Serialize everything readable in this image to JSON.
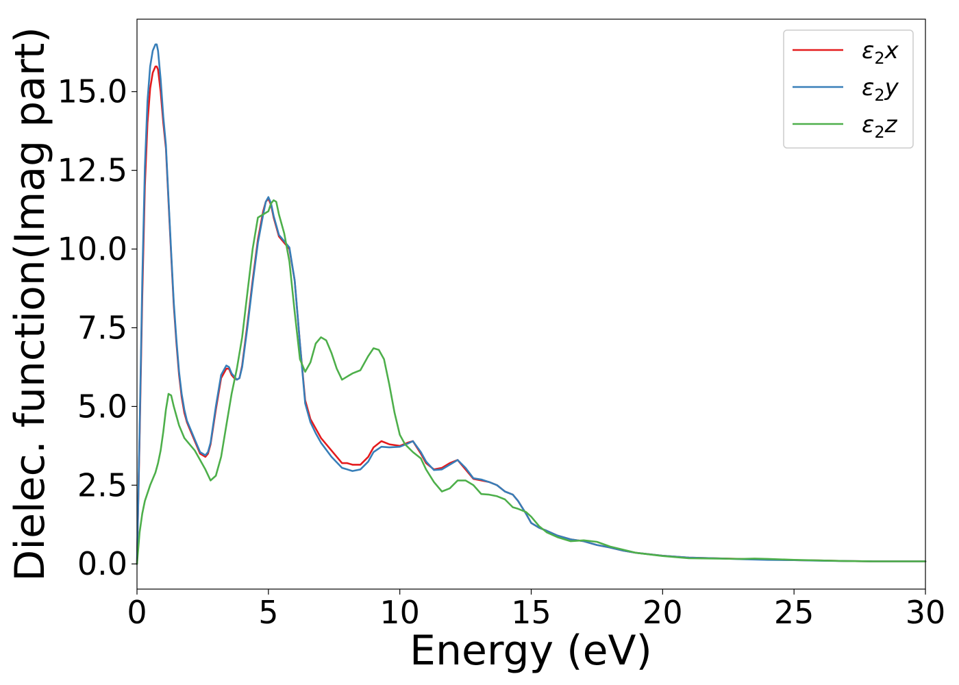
{
  "chart_data": {
    "type": "line",
    "title": "",
    "xlabel": "Energy (eV)",
    "ylabel": "Dielec. function(Imag part)",
    "xlim": [
      0,
      30
    ],
    "ylim": [
      -0.8,
      17.3
    ],
    "xticks": [
      0,
      5,
      10,
      15,
      20,
      25,
      30
    ],
    "xtick_labels": [
      "0",
      "5",
      "10",
      "15",
      "20",
      "25",
      "30"
    ],
    "yticks": [
      0,
      2.5,
      5,
      7.5,
      10,
      12.5,
      15
    ],
    "ytick_labels": [
      "0.0",
      "2.5",
      "5.0",
      "7.5",
      "10.0",
      "12.5",
      "15.0"
    ],
    "grid": false,
    "legend_position": "top-right",
    "series": [
      {
        "name": "ε2x",
        "legend_base": "ε",
        "legend_sub": "2",
        "legend_suffix": "x",
        "color": "#e41a1c",
        "x": [
          0,
          0.1,
          0.2,
          0.3,
          0.4,
          0.5,
          0.6,
          0.7,
          0.75,
          0.8,
          0.9,
          1.0,
          1.1,
          1.2,
          1.3,
          1.4,
          1.5,
          1.6,
          1.7,
          1.8,
          1.9,
          2.0,
          2.2,
          2.4,
          2.6,
          2.7,
          2.8,
          3.0,
          3.2,
          3.4,
          3.5,
          3.6,
          3.7,
          3.8,
          3.9,
          4.0,
          4.2,
          4.4,
          4.6,
          4.8,
          4.9,
          5.0,
          5.1,
          5.2,
          5.4,
          5.6,
          5.8,
          6.0,
          6.2,
          6.4,
          6.6,
          6.8,
          7.0,
          7.4,
          7.8,
          8.0,
          8.2,
          8.5,
          8.8,
          9.0,
          9.3,
          9.6,
          10.0,
          10.3,
          10.5,
          10.8,
          11.0,
          11.3,
          11.6,
          11.9,
          12.2,
          12.5,
          12.8,
          13.1,
          13.4,
          13.7,
          14.0,
          14.3,
          14.5,
          14.8,
          15.0,
          15.3,
          15.6,
          16.0,
          16.5,
          17.0,
          17.5,
          18.0,
          18.5,
          19.0,
          20.0,
          21.0,
          22.0,
          23.0,
          24.0,
          25.0,
          26.0,
          27.0,
          28.0,
          29.0,
          30.0
        ],
        "values": [
          0,
          4.0,
          8.5,
          12.0,
          14.0,
          15.1,
          15.6,
          15.8,
          15.8,
          15.7,
          15.0,
          14.0,
          13.2,
          11.5,
          9.8,
          8.2,
          7.0,
          6.0,
          5.3,
          4.8,
          4.5,
          4.3,
          3.9,
          3.5,
          3.4,
          3.5,
          3.8,
          4.9,
          5.9,
          6.2,
          6.2,
          6.0,
          5.9,
          5.85,
          5.9,
          6.3,
          7.6,
          9.0,
          10.3,
          11.2,
          11.5,
          11.6,
          11.4,
          11.0,
          10.4,
          10.2,
          10.0,
          9.0,
          7.0,
          5.2,
          4.6,
          4.3,
          4.0,
          3.6,
          3.2,
          3.2,
          3.15,
          3.15,
          3.4,
          3.7,
          3.9,
          3.8,
          3.75,
          3.85,
          3.9,
          3.5,
          3.2,
          3.0,
          3.05,
          3.2,
          3.3,
          3.0,
          2.7,
          2.65,
          2.6,
          2.5,
          2.3,
          2.2,
          2.0,
          1.6,
          1.3,
          1.15,
          1.05,
          0.9,
          0.78,
          0.72,
          0.6,
          0.52,
          0.42,
          0.35,
          0.26,
          0.2,
          0.18,
          0.16,
          0.14,
          0.12,
          0.11,
          0.09,
          0.08,
          0.08,
          0.08
        ]
      },
      {
        "name": "ε2y",
        "legend_base": "ε",
        "legend_sub": "2",
        "legend_suffix": "y",
        "color": "#377eb8",
        "x": [
          0,
          0.1,
          0.2,
          0.3,
          0.4,
          0.5,
          0.6,
          0.7,
          0.75,
          0.8,
          0.9,
          1.0,
          1.1,
          1.2,
          1.3,
          1.4,
          1.5,
          1.6,
          1.7,
          1.8,
          1.9,
          2.0,
          2.2,
          2.4,
          2.6,
          2.7,
          2.8,
          3.0,
          3.2,
          3.4,
          3.5,
          3.6,
          3.7,
          3.8,
          3.9,
          4.0,
          4.2,
          4.4,
          4.6,
          4.8,
          4.9,
          5.0,
          5.1,
          5.2,
          5.4,
          5.6,
          5.8,
          6.0,
          6.2,
          6.4,
          6.6,
          6.8,
          7.0,
          7.4,
          7.8,
          8.0,
          8.2,
          8.5,
          8.8,
          9.0,
          9.3,
          9.6,
          10.0,
          10.3,
          10.5,
          10.8,
          11.0,
          11.3,
          11.6,
          11.9,
          12.2,
          12.5,
          12.8,
          13.1,
          13.4,
          13.7,
          14.0,
          14.3,
          14.5,
          14.8,
          15.0,
          15.3,
          15.6,
          16.0,
          16.5,
          17.0,
          17.5,
          18.0,
          18.5,
          19.0,
          20.0,
          21.0,
          22.0,
          23.0,
          24.0,
          25.0,
          26.0,
          27.0,
          28.0,
          29.0,
          30.0
        ],
        "values": [
          0,
          4.2,
          9.0,
          12.6,
          14.7,
          15.8,
          16.3,
          16.5,
          16.5,
          16.3,
          15.4,
          14.2,
          13.3,
          11.6,
          9.9,
          8.3,
          7.1,
          6.1,
          5.4,
          4.9,
          4.55,
          4.35,
          3.95,
          3.55,
          3.45,
          3.55,
          3.85,
          5.0,
          6.0,
          6.3,
          6.25,
          6.05,
          5.95,
          5.85,
          5.9,
          6.25,
          7.5,
          8.9,
          10.2,
          11.1,
          11.5,
          11.65,
          11.45,
          11.05,
          10.45,
          10.25,
          10.05,
          9.0,
          7.0,
          5.1,
          4.5,
          4.15,
          3.85,
          3.4,
          3.05,
          3.0,
          2.95,
          3.0,
          3.25,
          3.55,
          3.72,
          3.7,
          3.72,
          3.82,
          3.9,
          3.55,
          3.25,
          2.98,
          3.0,
          3.15,
          3.3,
          3.05,
          2.72,
          2.68,
          2.6,
          2.5,
          2.3,
          2.2,
          2.0,
          1.6,
          1.3,
          1.15,
          1.05,
          0.9,
          0.78,
          0.72,
          0.6,
          0.52,
          0.42,
          0.35,
          0.26,
          0.2,
          0.18,
          0.15,
          0.13,
          0.12,
          0.1,
          0.09,
          0.08,
          0.08,
          0.08
        ]
      },
      {
        "name": "ε2z",
        "legend_base": "ε",
        "legend_sub": "2",
        "legend_suffix": "z",
        "color": "#4daf4a",
        "x": [
          0,
          0.1,
          0.2,
          0.3,
          0.5,
          0.7,
          0.8,
          0.9,
          1.0,
          1.1,
          1.2,
          1.3,
          1.4,
          1.6,
          1.8,
          2.0,
          2.2,
          2.4,
          2.6,
          2.8,
          3.0,
          3.2,
          3.4,
          3.6,
          3.8,
          4.0,
          4.2,
          4.4,
          4.6,
          4.8,
          5.0,
          5.1,
          5.2,
          5.3,
          5.4,
          5.6,
          5.8,
          6.0,
          6.2,
          6.4,
          6.6,
          6.8,
          7.0,
          7.2,
          7.4,
          7.6,
          7.8,
          8.0,
          8.2,
          8.5,
          8.8,
          9.0,
          9.2,
          9.4,
          9.6,
          9.8,
          10.0,
          10.2,
          10.5,
          10.8,
          11.0,
          11.3,
          11.6,
          11.9,
          12.2,
          12.5,
          12.8,
          13.1,
          13.4,
          13.7,
          14.0,
          14.3,
          14.5,
          14.8,
          15.0,
          15.3,
          15.6,
          16.0,
          16.5,
          17.0,
          17.5,
          18.0,
          18.5,
          19.0,
          20.0,
          21.0,
          22.0,
          23.0,
          23.5,
          24.0,
          25.0,
          26.0,
          27.0,
          28.0,
          29.0,
          30.0
        ],
        "values": [
          0,
          1.0,
          1.6,
          2.0,
          2.5,
          2.9,
          3.2,
          3.6,
          4.2,
          4.9,
          5.4,
          5.35,
          5.0,
          4.4,
          4.0,
          3.8,
          3.6,
          3.3,
          3.0,
          2.65,
          2.8,
          3.4,
          4.4,
          5.4,
          6.2,
          7.2,
          8.6,
          10.0,
          11.0,
          11.1,
          11.2,
          11.45,
          11.55,
          11.5,
          11.1,
          10.5,
          9.6,
          8.0,
          6.5,
          6.1,
          6.4,
          7.0,
          7.2,
          7.1,
          6.7,
          6.2,
          5.85,
          5.95,
          6.05,
          6.15,
          6.6,
          6.85,
          6.8,
          6.5,
          5.7,
          4.8,
          4.1,
          3.8,
          3.55,
          3.35,
          3.0,
          2.6,
          2.3,
          2.4,
          2.65,
          2.65,
          2.5,
          2.22,
          2.2,
          2.15,
          2.05,
          1.8,
          1.75,
          1.65,
          1.5,
          1.2,
          1.0,
          0.85,
          0.72,
          0.75,
          0.7,
          0.55,
          0.45,
          0.35,
          0.25,
          0.18,
          0.17,
          0.16,
          0.17,
          0.16,
          0.13,
          0.11,
          0.09,
          0.08,
          0.08,
          0.08
        ]
      }
    ]
  }
}
